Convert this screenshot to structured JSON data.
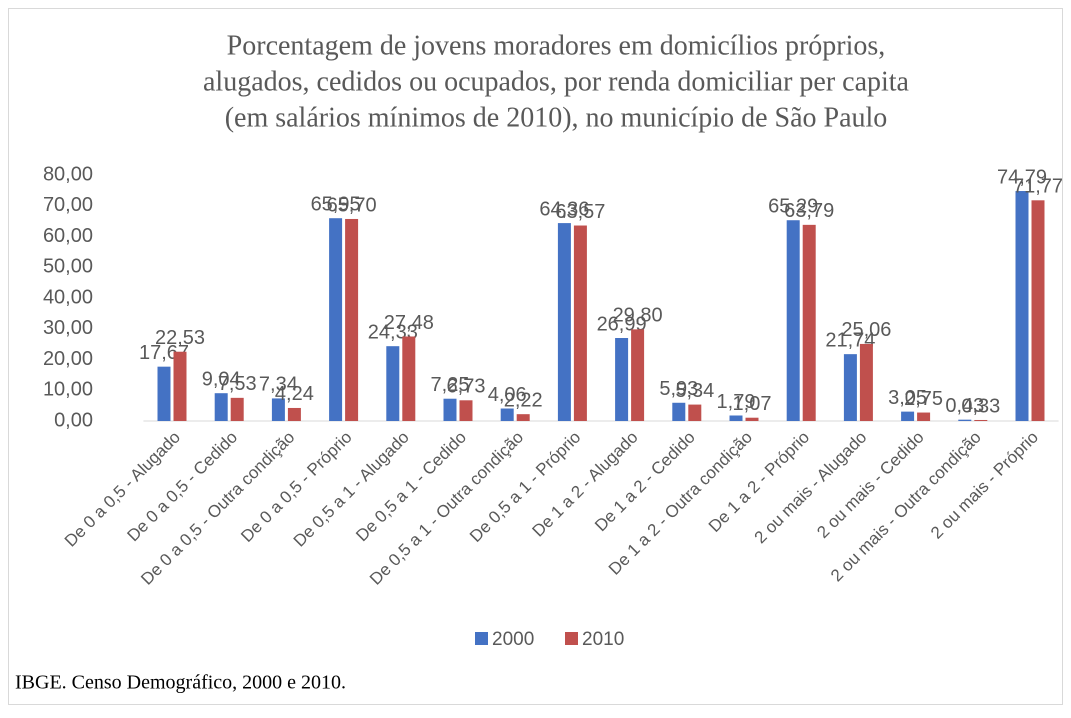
{
  "chart_data": {
    "type": "bar",
    "title": [
      "Porcentagem de jovens moradores em domicílios próprios,",
      "alugados, cedidos ou ocupados, por renda domiciliar per capita",
      "(em salários mínimos de 2010), no município de São Paulo"
    ],
    "categories": [
      "De 0 a 0,5 - Alugado",
      "De 0 a 0,5 - Cedido",
      "De 0 a 0,5 - Outra condição",
      "De 0 a 0,5 - Próprio",
      "De 0,5 a 1 - Alugado",
      "De 0,5 a 1 - Cedido",
      "De 0,5 a 1 - Outra condição",
      "De 0,5 a 1 - Próprio",
      "De 1 a 2 - Alugado",
      "De 1 a 2 - Cedido",
      "De 1 a 2 - Outra condição",
      "De 1 a 2 - Próprio",
      "2 ou mais - Alugado",
      "2 ou mais - Cedido",
      "2 ou mais - Outra condição",
      "2 ou mais - Próprio"
    ],
    "series": [
      {
        "name": "2000",
        "color": "#4472c4",
        "values": [
          17.67,
          9.04,
          7.34,
          65.95,
          24.33,
          7.25,
          4.06,
          64.36,
          26.99,
          5.93,
          1.79,
          65.29,
          21.74,
          3.05,
          0.43,
          74.79
        ],
        "value_labels": [
          "17,67",
          "9,04",
          "7,34",
          "65,95",
          "24,33",
          "7,25",
          "4,06",
          "64,36",
          "26,99",
          "5,93",
          "1,79",
          "65,29",
          "21,74",
          "3,05",
          "0,43",
          "74,79"
        ]
      },
      {
        "name": "2010",
        "color": "#c0504d",
        "values": [
          22.53,
          7.53,
          4.24,
          65.7,
          27.48,
          6.73,
          2.22,
          63.57,
          29.8,
          5.34,
          1.07,
          63.79,
          25.06,
          2.75,
          0.33,
          71.77
        ],
        "value_labels": [
          "22,53",
          "7,53",
          "4,24",
          "65,70",
          "27,48",
          "6,73",
          "2,22",
          "63,57",
          "29,80",
          "5,34",
          "1,07",
          "63,79",
          "25,06",
          "2,75",
          "0,33",
          "71,77"
        ]
      }
    ],
    "ylim": [
      0,
      80
    ],
    "yticks": [
      {
        "value": 0,
        "label": "0,00"
      },
      {
        "value": 10,
        "label": "10,00"
      },
      {
        "value": 20,
        "label": "20,00"
      },
      {
        "value": 30,
        "label": "30,00"
      },
      {
        "value": 40,
        "label": "40,00"
      },
      {
        "value": 50,
        "label": "50,00"
      },
      {
        "value": 60,
        "label": "60,00"
      },
      {
        "value": 70,
        "label": "70,00"
      },
      {
        "value": 80,
        "label": "80,00"
      }
    ],
    "grid": false,
    "legend": "bottom",
    "source": "IBGE. Censo Demográfico, 2000 e 2010."
  }
}
